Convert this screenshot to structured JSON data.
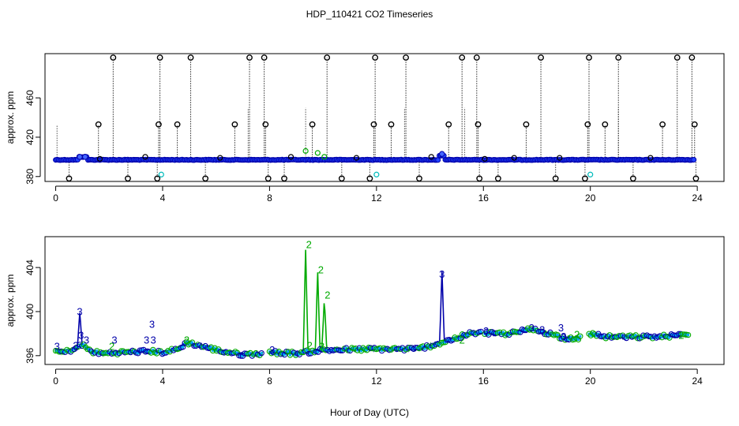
{
  "page": {
    "title": "HDP_110421  CO2 Timeseries"
  },
  "chart_data": [
    {
      "type": "scatter",
      "title": "HDP_110421  CO2 Timeseries",
      "xlabel": "",
      "ylabel": "approx. ppm",
      "xlim": [
        -0.4,
        25
      ],
      "ylim": [
        375,
        505
      ],
      "xticks": [
        "0",
        "4",
        "8",
        "12",
        "16",
        "20",
        "24"
      ],
      "xtick_values": [
        0,
        4,
        8,
        12,
        16,
        20,
        24
      ],
      "yticks": [
        "380",
        "420",
        "460"
      ],
      "ytick_values": [
        380,
        420,
        460
      ],
      "baseline": 397,
      "colors": {
        "series_main": "#0000cc",
        "series_alt": "#00bbbb",
        "series_green": "#00aa00",
        "outlier": "#000000"
      },
      "high_outliers": [
        2.15,
        3.9,
        5.05,
        7.25,
        7.8,
        10.15,
        11.95,
        13.1,
        15.2,
        15.75,
        18.15,
        19.95,
        21.05,
        23.25,
        23.8
      ],
      "mid_outliers": [
        1.6,
        3.85,
        4.55,
        6.7,
        7.85,
        9.6,
        11.9,
        12.55,
        14.7,
        15.8,
        17.6,
        19.9,
        20.55,
        22.7,
        23.9
      ],
      "low_outliers": [
        0.5,
        2.7,
        3.8,
        5.6,
        7.95,
        8.55,
        10.7,
        11.75,
        13.6,
        15.85,
        16.55,
        18.7,
        19.8,
        21.6,
        23.95
      ],
      "small_marks": [
        {
          "x": 1.65,
          "y": 398
        },
        {
          "x": 3.35,
          "y": 400
        },
        {
          "x": 6.15,
          "y": 399
        },
        {
          "x": 8.8,
          "y": 400
        },
        {
          "x": 11.25,
          "y": 399
        },
        {
          "x": 14.05,
          "y": 400
        },
        {
          "x": 17.15,
          "y": 399
        },
        {
          "x": 18.85,
          "y": 399
        },
        {
          "x": 22.25,
          "y": 399
        },
        {
          "x": 16.05,
          "y": 398
        }
      ],
      "green_marks": [
        {
          "x": 9.35,
          "y": 406
        },
        {
          "x": 9.8,
          "y": 404
        },
        {
          "x": 10.05,
          "y": 400
        }
      ],
      "cyan_marks": [
        {
          "x": 3.95,
          "y": 382
        },
        {
          "x": 12.0,
          "y": 382
        },
        {
          "x": 20.0,
          "y": 382
        }
      ],
      "blue_marks": [
        {
          "x": 14.45,
          "y": 403
        },
        {
          "x": 0.9,
          "y": 400
        },
        {
          "x": 1.1,
          "y": 400
        }
      ]
    },
    {
      "type": "scatter",
      "title": "",
      "xlabel": "Hour of Day (UTC)",
      "ylabel": "approx. ppm",
      "xlim": [
        -0.4,
        25
      ],
      "ylim": [
        395.2,
        406.8
      ],
      "xticks": [
        "0",
        "4",
        "8",
        "12",
        "16",
        "20",
        "24"
      ],
      "xtick_values": [
        0,
        4,
        8,
        12,
        16,
        20,
        24
      ],
      "yticks": [
        "396",
        "400",
        "404"
      ],
      "ytick_values": [
        396,
        400,
        404
      ],
      "colors": {
        "series_3": "#0000aa",
        "series_2": "#00aa00",
        "points_fill": "#00aaff"
      },
      "segments": [
        [
          0.0,
          7.75
        ],
        [
          8.0,
          15.95
        ],
        [
          16.05,
          19.65
        ],
        [
          19.95,
          23.7
        ]
      ],
      "baseline_profile": [
        [
          0.0,
          396.4
        ],
        [
          0.3,
          396.3
        ],
        [
          0.7,
          396.6
        ],
        [
          1.0,
          397.0
        ],
        [
          1.3,
          396.4
        ],
        [
          1.7,
          396.2
        ],
        [
          2.5,
          396.3
        ],
        [
          3.5,
          396.4
        ],
        [
          4.0,
          396.3
        ],
        [
          4.6,
          396.6
        ],
        [
          4.9,
          397.2
        ],
        [
          5.4,
          396.9
        ],
        [
          6.2,
          396.4
        ],
        [
          7.0,
          396.1
        ],
        [
          7.75,
          396.2
        ],
        [
          8.0,
          396.3
        ],
        [
          9.0,
          396.2
        ],
        [
          10.0,
          396.5
        ],
        [
          12.0,
          396.6
        ],
        [
          13.5,
          396.6
        ],
        [
          14.2,
          397.0
        ],
        [
          15.0,
          397.6
        ],
        [
          15.5,
          398.0
        ],
        [
          15.95,
          398.1
        ],
        [
          16.05,
          398.0
        ],
        [
          17.0,
          398.0
        ],
        [
          17.8,
          398.4
        ],
        [
          18.5,
          398.0
        ],
        [
          19.0,
          397.6
        ],
        [
          19.65,
          397.6
        ],
        [
          19.95,
          398.0
        ],
        [
          20.6,
          397.7
        ],
        [
          21.5,
          397.7
        ],
        [
          22.5,
          397.7
        ],
        [
          23.0,
          397.8
        ],
        [
          23.7,
          397.9
        ]
      ],
      "spikes_green": [
        {
          "x": 9.35,
          "y": 405.8,
          "label": "2"
        },
        {
          "x": 9.8,
          "y": 403.5,
          "label": "2"
        },
        {
          "x": 10.05,
          "y": 401.2,
          "label": "2"
        }
      ],
      "spikes_blue": [
        {
          "x": 0.9,
          "y": 399.5,
          "label": "3"
        },
        {
          "x": 14.45,
          "y": 402.9,
          "label": "3"
        }
      ],
      "labels_3": [
        {
          "x": 0.05,
          "y": 396.8,
          "label": "3"
        },
        {
          "x": 0.75,
          "y": 396.9,
          "label": "3"
        },
        {
          "x": 0.95,
          "y": 397.8,
          "label": "3"
        },
        {
          "x": 1.15,
          "y": 397.4,
          "label": "3"
        },
        {
          "x": 2.2,
          "y": 397.4,
          "label": "3"
        },
        {
          "x": 3.4,
          "y": 397.4,
          "label": "3"
        },
        {
          "x": 3.6,
          "y": 398.8,
          "label": "3"
        },
        {
          "x": 3.65,
          "y": 397.4,
          "label": "3"
        },
        {
          "x": 8.1,
          "y": 396.5,
          "label": "3"
        },
        {
          "x": 16.1,
          "y": 398.2,
          "label": "3"
        },
        {
          "x": 17.8,
          "y": 398.5,
          "label": "3"
        },
        {
          "x": 18.2,
          "y": 398.3,
          "label": "3"
        },
        {
          "x": 18.9,
          "y": 398.5,
          "label": "3"
        },
        {
          "x": 19.0,
          "y": 397.7,
          "label": "3"
        }
      ],
      "labels_2": [
        {
          "x": 2.1,
          "y": 396.8,
          "label": "2"
        },
        {
          "x": 4.9,
          "y": 397.4,
          "label": "2"
        },
        {
          "x": 9.5,
          "y": 396.9,
          "label": "2"
        },
        {
          "x": 9.95,
          "y": 396.8,
          "label": "2"
        },
        {
          "x": 15.2,
          "y": 397.4,
          "label": "2"
        },
        {
          "x": 19.5,
          "y": 397.9,
          "label": "2"
        },
        {
          "x": 23.4,
          "y": 397.8,
          "label": "2"
        }
      ]
    }
  ]
}
